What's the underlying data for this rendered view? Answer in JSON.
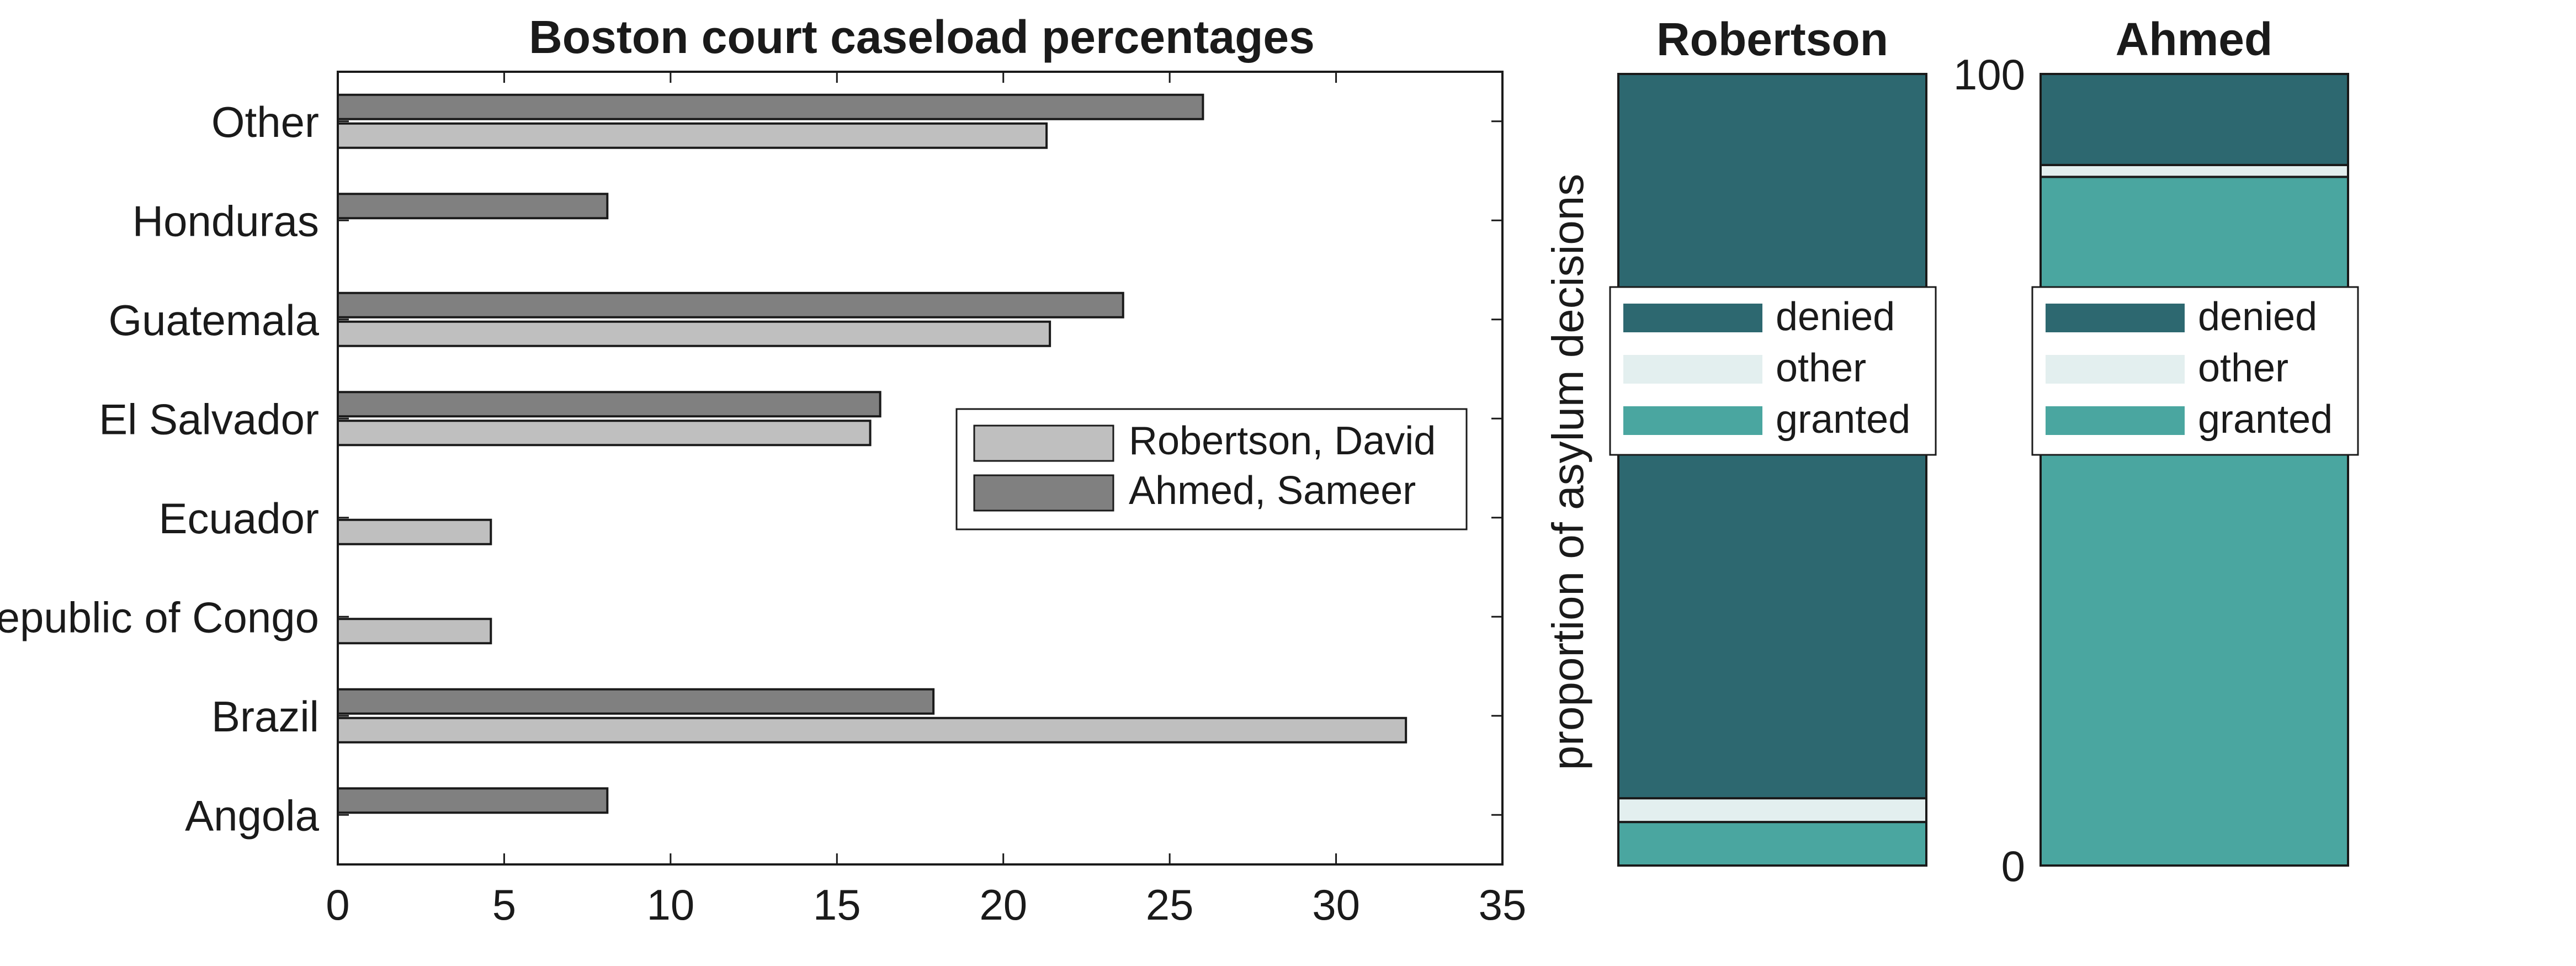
{
  "chart_data": [
    {
      "type": "bar",
      "orientation": "horizontal",
      "title": "Boston court caseload percentages",
      "categories": [
        "Angola",
        "Brazil",
        "Democratic Republic of Congo",
        "Ecuador",
        "El Salvador",
        "Guatemala",
        "Honduras",
        "Other"
      ],
      "series": [
        {
          "name": "Robertson, David",
          "color": "#bfbfbf",
          "values": [
            0,
            32.1,
            4.6,
            4.6,
            16.0,
            21.4,
            0,
            21.3
          ]
        },
        {
          "name": "Ahmed, Sameer",
          "color": "#808080",
          "values": [
            8.1,
            17.9,
            0,
            0,
            16.3,
            23.6,
            8.1,
            26.0
          ]
        }
      ],
      "xlim": [
        0,
        35
      ],
      "xticks": [
        0,
        5,
        10,
        15,
        20,
        25,
        30,
        35
      ],
      "legend_position": "right-center"
    },
    {
      "type": "bar",
      "stacked": true,
      "title": "Robertson",
      "ylabel": "proportion of asylum decisions",
      "ylim": [
        0,
        100
      ],
      "segments": [
        {
          "name": "granted",
          "value": 5.5,
          "color": "#4aa6a0"
        },
        {
          "name": "other",
          "value": 3.0,
          "color": "#e3efef"
        },
        {
          "name": "denied",
          "value": 91.5,
          "color": "#2d6870"
        }
      ],
      "legend_order": [
        "denied",
        "other",
        "granted"
      ]
    },
    {
      "type": "bar",
      "stacked": true,
      "title": "Ahmed",
      "ylim": [
        0,
        100
      ],
      "yticks": [
        0,
        100
      ],
      "segments": [
        {
          "name": "granted",
          "value": 87.0,
          "color": "#4aa6a0"
        },
        {
          "name": "other",
          "value": 1.5,
          "color": "#e3efef"
        },
        {
          "name": "denied",
          "value": 11.5,
          "color": "#2d6870"
        }
      ],
      "legend_order": [
        "denied",
        "other",
        "granted"
      ]
    }
  ]
}
